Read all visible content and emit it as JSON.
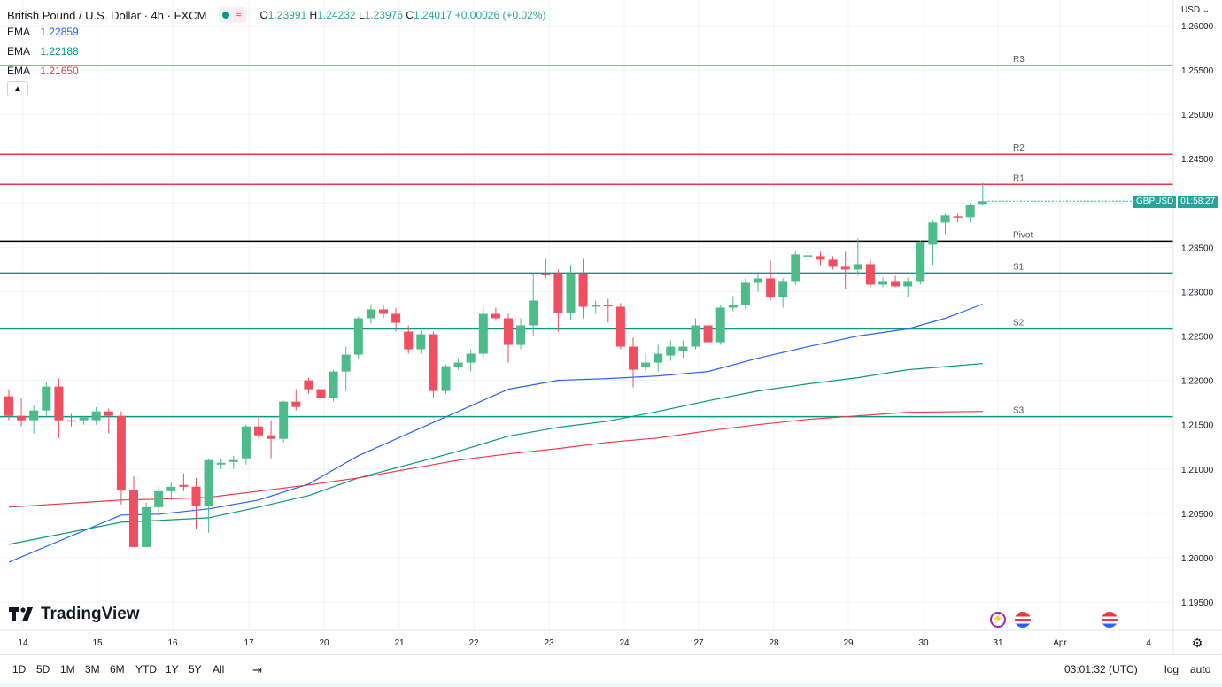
{
  "header": {
    "title": "British Pound / U.S. Dollar · 4h · FXCM",
    "ohlc": {
      "o_label": "O",
      "o": "1.23991",
      "h_label": "H",
      "h": "1.24232",
      "l_label": "L",
      "l": "1.23976",
      "c_label": "C",
      "c": "1.24017",
      "change": "+0.00026 (+0.02%)"
    }
  },
  "indicators": [
    {
      "name": "EMA",
      "value": "1.22859",
      "color": "#2962ff"
    },
    {
      "name": "EMA",
      "value": "1.22188",
      "color": "#089981"
    },
    {
      "name": "EMA",
      "value": "1.21650",
      "color": "#f23645"
    }
  ],
  "currency": "USD",
  "price_tag": {
    "symbol": "GBPUSD",
    "countdown": "01:58:27"
  },
  "branding": "TradingView",
  "bottom": {
    "ranges": [
      "1D",
      "5D",
      "1M",
      "3M",
      "6M",
      "YTD",
      "1Y",
      "5Y",
      "All"
    ],
    "clock": "03:01:32 (UTC)",
    "log": "log",
    "auto": "auto"
  },
  "chart_data": {
    "type": "candlestick",
    "title": "British Pound / U.S. Dollar · 4h · FXCM",
    "ylim": [
      1.1925,
      1.2615
    ],
    "y_ticks": [
      "1.26000",
      "1.25500",
      "1.25000",
      "1.24500",
      "1.24000",
      "1.23500",
      "1.23000",
      "1.22500",
      "1.22000",
      "1.21500",
      "1.21000",
      "1.20500",
      "1.20000",
      "1.19500"
    ],
    "x_ticks": [
      "14",
      "15",
      "16",
      "17",
      "20",
      "21",
      "22",
      "23",
      "24",
      "27",
      "28",
      "29",
      "30",
      "31",
      "Apr",
      "4"
    ],
    "levels": [
      {
        "label": "R3",
        "value": 1.2555,
        "color": "#f23645"
      },
      {
        "label": "R2",
        "value": 1.2455,
        "color": "#f23645"
      },
      {
        "label": "R1",
        "value": 1.2421,
        "color": "#f23645"
      },
      {
        "label": "Pivot",
        "value": 1.2357,
        "color": "#000000"
      },
      {
        "label": "S1",
        "value": 1.2321,
        "color": "#089981"
      },
      {
        "label": "S2",
        "value": 1.2258,
        "color": "#089981"
      },
      {
        "label": "S3",
        "value": 1.2159,
        "color": "#089981"
      }
    ],
    "candles": [
      [
        1.2182,
        1.219,
        1.2155,
        1.216
      ],
      [
        1.216,
        1.218,
        1.2148,
        1.2155
      ],
      [
        1.2155,
        1.2172,
        1.214,
        1.2166
      ],
      [
        1.2166,
        1.2198,
        1.216,
        1.2193
      ],
      [
        1.2193,
        1.2202,
        1.2135,
        1.2155
      ],
      [
        1.2155,
        1.2162,
        1.2148,
        1.2154
      ],
      [
        1.2155,
        1.216,
        1.215,
        1.2158
      ],
      [
        1.2155,
        1.217,
        1.215,
        1.2165
      ],
      [
        1.2165,
        1.2168,
        1.214,
        1.216
      ],
      [
        1.216,
        1.2165,
        1.206,
        1.2076
      ],
      [
        1.2076,
        1.2092,
        1.2012,
        1.2012
      ],
      [
        1.2012,
        1.2062,
        1.2012,
        1.2057
      ],
      [
        1.2057,
        1.208,
        1.205,
        1.2075
      ],
      [
        1.2075,
        1.2085,
        1.2065,
        1.208
      ],
      [
        1.2082,
        1.2095,
        1.2075,
        1.208
      ],
      [
        1.208,
        1.209,
        1.2032,
        1.2058
      ],
      [
        1.2058,
        1.2112,
        1.2028,
        1.211
      ],
      [
        1.2105,
        1.2112,
        1.21,
        1.2107
      ],
      [
        1.2108,
        1.2115,
        1.21,
        1.211
      ],
      [
        1.2112,
        1.215,
        1.2105,
        1.2148
      ],
      [
        1.2148,
        1.216,
        1.2135,
        1.2138
      ],
      [
        1.2138,
        1.2155,
        1.2112,
        1.2134
      ],
      [
        1.2134,
        1.2177,
        1.213,
        1.2176
      ],
      [
        1.2176,
        1.219,
        1.2166,
        1.217
      ],
      [
        1.22,
        1.2203,
        1.2185,
        1.219
      ],
      [
        1.219,
        1.2196,
        1.217,
        1.218
      ],
      [
        1.218,
        1.2212,
        1.2176,
        1.221
      ],
      [
        1.221,
        1.2238,
        1.2188,
        1.2229
      ],
      [
        1.2229,
        1.2272,
        1.2224,
        1.227
      ],
      [
        1.227,
        1.2286,
        1.2264,
        1.228
      ],
      [
        1.228,
        1.2285,
        1.227,
        1.2275
      ],
      [
        1.2275,
        1.2282,
        1.2255,
        1.2265
      ],
      [
        1.2255,
        1.2262,
        1.223,
        1.2235
      ],
      [
        1.2235,
        1.2256,
        1.223,
        1.2252
      ],
      [
        1.2252,
        1.2255,
        1.218,
        1.2188
      ],
      [
        1.2188,
        1.2218,
        1.2185,
        1.2216
      ],
      [
        1.2215,
        1.2225,
        1.2212,
        1.222
      ],
      [
        1.222,
        1.2235,
        1.221,
        1.223
      ],
      [
        1.223,
        1.2282,
        1.2225,
        1.2275
      ],
      [
        1.2275,
        1.2282,
        1.2267,
        1.227
      ],
      [
        1.227,
        1.2275,
        1.222,
        1.224
      ],
      [
        1.224,
        1.227,
        1.2235,
        1.2262
      ],
      [
        1.2262,
        1.232,
        1.225,
        1.229
      ],
      [
        1.232,
        1.2338,
        1.2315,
        1.2319
      ],
      [
        1.232,
        1.2325,
        1.2255,
        1.2276
      ],
      [
        1.2276,
        1.233,
        1.2268,
        1.232
      ],
      [
        1.232,
        1.2338,
        1.227,
        1.2283
      ],
      [
        1.2283,
        1.229,
        1.2275,
        1.2285
      ],
      [
        1.2285,
        1.2292,
        1.2265,
        1.2284
      ],
      [
        1.2283,
        1.2287,
        1.2235,
        1.2238
      ],
      [
        1.2238,
        1.2248,
        1.2192,
        1.2212
      ],
      [
        1.2215,
        1.223,
        1.221,
        1.222
      ],
      [
        1.222,
        1.224,
        1.221,
        1.223
      ],
      [
        1.2228,
        1.2245,
        1.2222,
        1.2238
      ],
      [
        1.2233,
        1.2245,
        1.2225,
        1.2238
      ],
      [
        1.2238,
        1.227,
        1.2235,
        1.2262
      ],
      [
        1.2262,
        1.2268,
        1.224,
        1.2243
      ],
      [
        1.2243,
        1.2285,
        1.224,
        1.2282
      ],
      [
        1.2282,
        1.2295,
        1.2278,
        1.2285
      ],
      [
        1.2285,
        1.2315,
        1.228,
        1.231
      ],
      [
        1.231,
        1.232,
        1.23,
        1.2315
      ],
      [
        1.2315,
        1.2335,
        1.229,
        1.2294
      ],
      [
        1.2294,
        1.2315,
        1.2282,
        1.2312
      ],
      [
        1.2312,
        1.2345,
        1.2308,
        1.2342
      ],
      [
        1.234,
        1.2345,
        1.2335,
        1.2341
      ],
      [
        1.234,
        1.2345,
        1.233,
        1.2336
      ],
      [
        1.2336,
        1.234,
        1.2325,
        1.2328
      ],
      [
        1.2328,
        1.2345,
        1.2303,
        1.2325
      ],
      [
        1.2325,
        1.236,
        1.2318,
        1.2331
      ],
      [
        1.2331,
        1.2338,
        1.2305,
        1.2308
      ],
      [
        1.2308,
        1.2316,
        1.2305,
        1.2312
      ],
      [
        1.2312,
        1.2318,
        1.2305,
        1.2306
      ],
      [
        1.2306,
        1.2316,
        1.2294,
        1.2312
      ],
      [
        1.2312,
        1.2358,
        1.2308,
        1.2356
      ],
      [
        1.2353,
        1.238,
        1.233,
        1.2378
      ],
      [
        1.2378,
        1.2388,
        1.2365,
        1.2386
      ],
      [
        1.2385,
        1.2388,
        1.2378,
        1.2384
      ],
      [
        1.2384,
        1.24,
        1.2378,
        1.2398
      ],
      [
        1.2399,
        1.2423,
        1.2398,
        1.2402
      ]
    ],
    "series": [
      {
        "name": "EMA (blue)",
        "color": "#2962ff",
        "points": [
          [
            0,
            1.1995
          ],
          [
            9,
            1.2048
          ],
          [
            12,
            1.2049
          ],
          [
            16,
            1.2055
          ],
          [
            20,
            1.2065
          ],
          [
            24,
            1.2083
          ],
          [
            28,
            1.2115
          ],
          [
            32,
            1.214
          ],
          [
            36,
            1.2165
          ],
          [
            40,
            1.219
          ],
          [
            44,
            1.22
          ],
          [
            48,
            1.2202
          ],
          [
            52,
            1.2205
          ],
          [
            56,
            1.221
          ],
          [
            60,
            1.2225
          ],
          [
            64,
            1.2238
          ],
          [
            68,
            1.225
          ],
          [
            72,
            1.2258
          ],
          [
            75,
            1.227
          ],
          [
            78,
            1.2286
          ]
        ]
      },
      {
        "name": "EMA (green)",
        "color": "#089981",
        "points": [
          [
            0,
            1.2015
          ],
          [
            9,
            1.204
          ],
          [
            12,
            1.2042
          ],
          [
            16,
            1.2045
          ],
          [
            20,
            1.2057
          ],
          [
            24,
            1.207
          ],
          [
            28,
            1.209
          ],
          [
            32,
            1.2105
          ],
          [
            36,
            1.212
          ],
          [
            40,
            1.2137
          ],
          [
            44,
            1.2147
          ],
          [
            48,
            1.2154
          ],
          [
            52,
            1.2165
          ],
          [
            56,
            1.2177
          ],
          [
            60,
            1.2188
          ],
          [
            64,
            1.2196
          ],
          [
            68,
            1.2203
          ],
          [
            72,
            1.2212
          ],
          [
            78,
            1.2219
          ]
        ]
      },
      {
        "name": "EMA (red)",
        "color": "#f23645",
        "points": [
          [
            0,
            1.2057
          ],
          [
            9,
            1.2065
          ],
          [
            12,
            1.2066
          ],
          [
            16,
            1.2068
          ],
          [
            20,
            1.2075
          ],
          [
            24,
            1.2082
          ],
          [
            28,
            1.209
          ],
          [
            32,
            1.21
          ],
          [
            36,
            1.211
          ],
          [
            40,
            1.2117
          ],
          [
            44,
            1.2123
          ],
          [
            48,
            1.213
          ],
          [
            52,
            1.2135
          ],
          [
            56,
            1.2143
          ],
          [
            60,
            1.215
          ],
          [
            64,
            1.2156
          ],
          [
            68,
            1.216
          ],
          [
            72,
            1.2164
          ],
          [
            78,
            1.2165
          ]
        ]
      }
    ]
  }
}
